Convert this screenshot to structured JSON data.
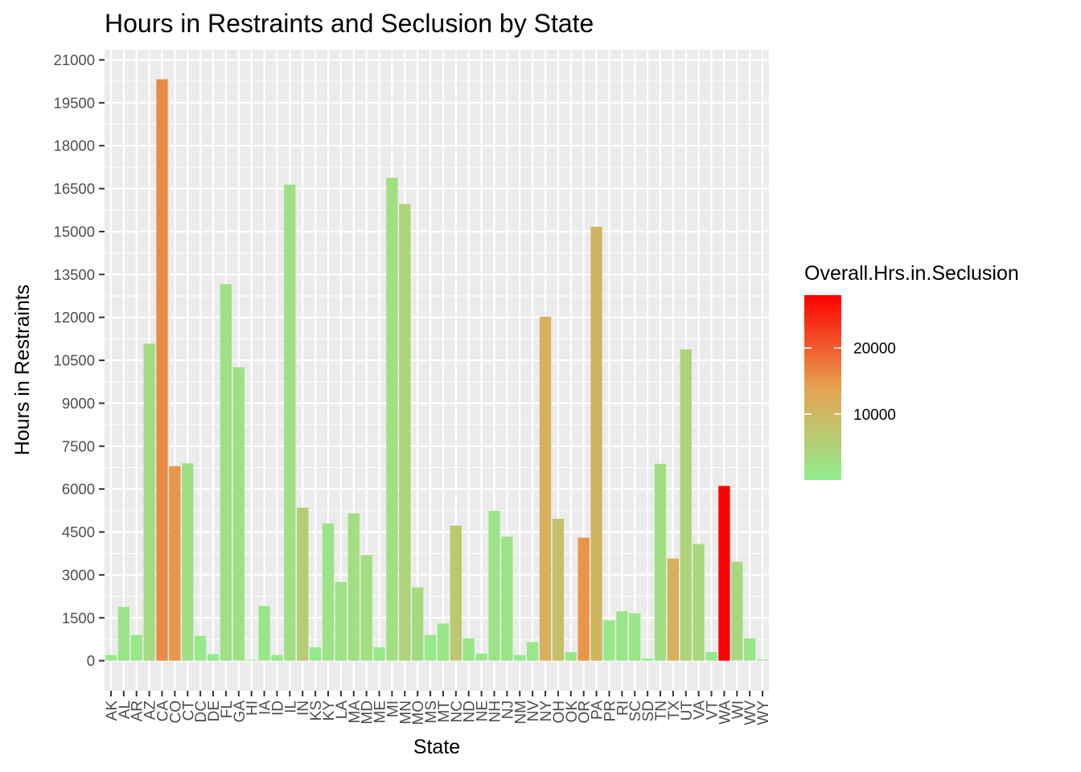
{
  "chart_data": {
    "type": "bar",
    "title": "Hours in Restraints and Seclusion by State",
    "xlabel": "State",
    "ylabel": "Hours in Restraints",
    "ylim": [
      -1050,
      21350
    ],
    "yticks": [
      0,
      1500,
      3000,
      4500,
      6000,
      7500,
      9000,
      10500,
      12000,
      13500,
      15000,
      16500,
      18000,
      19500,
      21000
    ],
    "ytick_labels": [
      "0",
      "1500",
      "3000",
      "4500",
      "6000",
      "7500",
      "9000",
      "10500",
      "12000",
      "13500",
      "15000",
      "16500",
      "18000",
      "19500",
      "21000"
    ],
    "grid": true,
    "categories": [
      "AK",
      "AL",
      "AR",
      "AZ",
      "CA",
      "CO",
      "CT",
      "DC",
      "DE",
      "FL",
      "GA",
      "HI",
      "IA",
      "ID",
      "IL",
      "IN",
      "KS",
      "KY",
      "LA",
      "MA",
      "MD",
      "ME",
      "MI",
      "MN",
      "MO",
      "MS",
      "MT",
      "NC",
      "ND",
      "NE",
      "NH",
      "NJ",
      "NM",
      "NV",
      "NY",
      "OH",
      "OK",
      "OR",
      "PA",
      "PR",
      "RI",
      "SC",
      "SD",
      "TN",
      "TX",
      "UT",
      "VA",
      "VT",
      "WA",
      "WI",
      "WV",
      "WY"
    ],
    "values": [
      200,
      1880,
      900,
      11080,
      20320,
      6800,
      6900,
      870,
      230,
      13160,
      10260,
      30,
      1910,
      200,
      16640,
      5350,
      470,
      4800,
      2750,
      5150,
      3690,
      470,
      16880,
      15960,
      2560,
      900,
      1300,
      4720,
      780,
      250,
      5240,
      4340,
      200,
      650,
      12020,
      4960,
      300,
      4300,
      15170,
      1410,
      1730,
      1660,
      80,
      6880,
      3570,
      10880,
      4080,
      300,
      6110,
      3460,
      780,
      40
    ],
    "color_values": [
      800,
      1500,
      1200,
      3500,
      16000,
      15000,
      2500,
      800,
      500,
      2500,
      2500,
      200,
      1500,
      800,
      2500,
      6000,
      800,
      2000,
      2000,
      3000,
      3000,
      800,
      3000,
      5000,
      3500,
      800,
      1500,
      7000,
      1500,
      1200,
      2000,
      2000,
      800,
      1200,
      11500,
      8500,
      1500,
      15000,
      10500,
      1000,
      1500,
      1500,
      500,
      3000,
      11500,
      5000,
      4000,
      1200,
      28000,
      4000,
      1500,
      1000
    ],
    "legend": {
      "title": "Overall.Hrs.in.Seclusion",
      "type": "colorbar",
      "placement": "right",
      "min": 0,
      "max": 28000,
      "ticks": [
        10000,
        20000
      ],
      "tick_labels": [
        "10000",
        "20000"
      ],
      "colors": [
        "#90EE90",
        "#E5A250",
        "#FF0000"
      ]
    },
    "colors": {
      "panel_background": "#EBEBEB",
      "grid": "#FFFFFF"
    }
  }
}
